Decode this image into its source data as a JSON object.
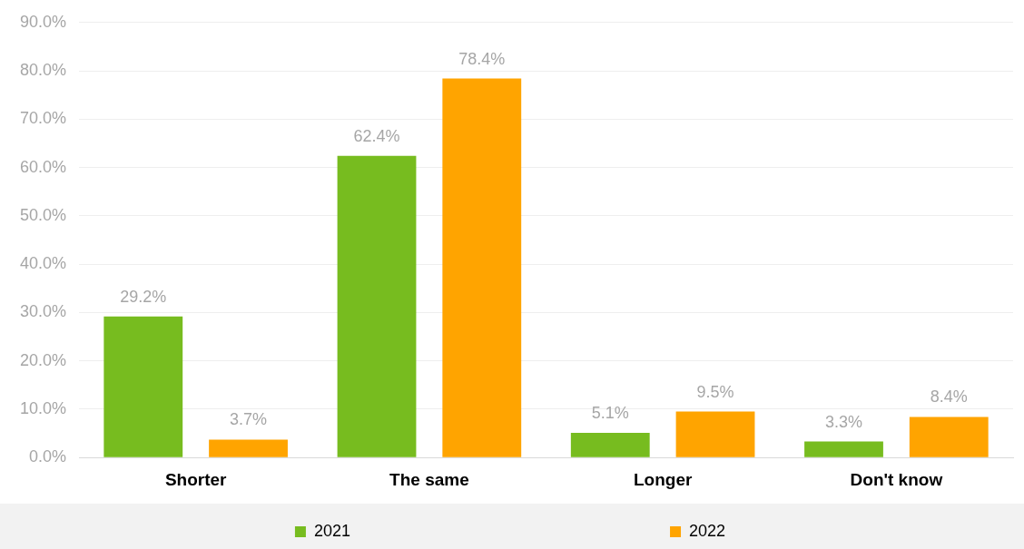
{
  "chart_data": {
    "type": "bar",
    "categories": [
      "Shorter",
      "The same",
      "Longer",
      "Don't know"
    ],
    "series": [
      {
        "name": "2021",
        "color": "#77bc1f",
        "values": [
          29.2,
          62.4,
          5.1,
          3.3
        ],
        "value_labels": [
          "29.2%",
          "62.4%",
          "5.1%",
          "3.3%"
        ]
      },
      {
        "name": "2022",
        "color": "#ffa400",
        "values": [
          3.7,
          78.4,
          9.5,
          8.4
        ],
        "value_labels": [
          "3.7%",
          "78.4%",
          "9.5%",
          "8.4%"
        ]
      }
    ],
    "ylim": [
      0,
      90
    ],
    "yticks": [
      {
        "value": 0,
        "label": "0.0%"
      },
      {
        "value": 10,
        "label": "10.0%"
      },
      {
        "value": 20,
        "label": "20.0%"
      },
      {
        "value": 30,
        "label": "30.0%"
      },
      {
        "value": 40,
        "label": "40.0%"
      },
      {
        "value": 50,
        "label": "50.0%"
      },
      {
        "value": 60,
        "label": "60.0%"
      },
      {
        "value": 70,
        "label": "70.0%"
      },
      {
        "value": 80,
        "label": "80.0%"
      },
      {
        "value": 90,
        "label": "90.0%"
      }
    ],
    "grid": "y",
    "legend": "bottom"
  }
}
